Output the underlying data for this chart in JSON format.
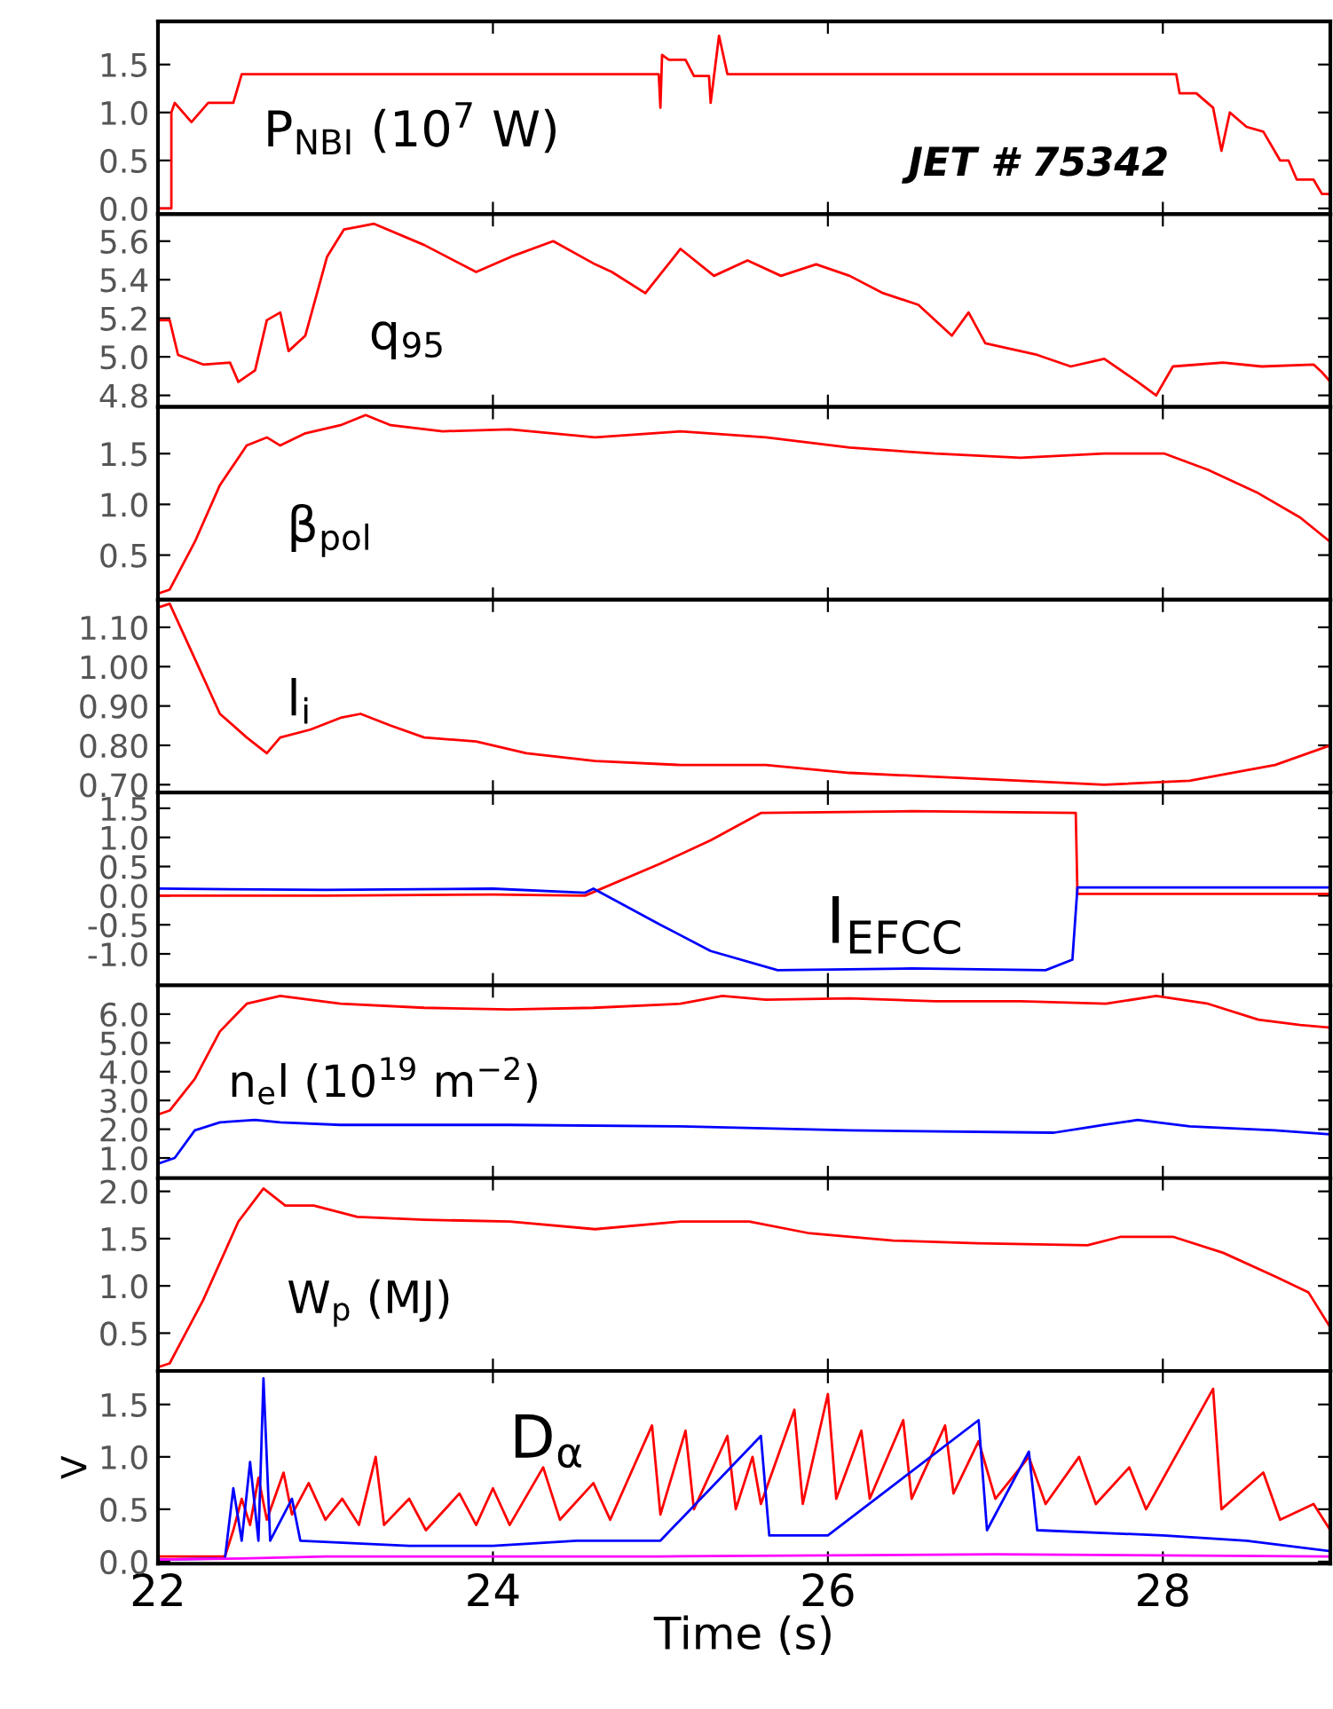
{
  "chart_data": [
    {
      "type": "line",
      "annotations": [
        "P$_{NBI}$ (10$^{7}$ W)",
        "JET # 75342"
      ],
      "xlim": [
        22,
        29
      ],
      "xticks": [
        22,
        24,
        26,
        28
      ],
      "ylim": [
        -0.06,
        1.95
      ],
      "yticks": [
        {
          "value": 0,
          "label": "0.0"
        },
        0.5,
        {
          "value": 1,
          "label": "1.0"
        },
        1.5
      ],
      "tick_labels": "y",
      "series": [
        {
          "color": "#ff0000",
          "x": [
            22.0,
            22.08,
            22.08,
            22.1,
            22.2,
            22.3,
            22.45,
            22.5,
            22.6,
            24.99,
            25.0,
            25.01,
            25.05,
            25.15,
            25.2,
            25.29,
            25.3,
            25.35,
            25.4,
            28.08,
            28.1,
            28.2,
            28.3,
            28.35,
            28.4,
            28.5,
            28.6,
            28.7,
            28.75,
            28.8,
            28.9,
            28.95,
            29.0
          ],
          "values": [
            0.0,
            0.0,
            1.0,
            1.1,
            0.9,
            1.1,
            1.1,
            1.4,
            1.4,
            1.4,
            1.05,
            1.6,
            1.55,
            1.55,
            1.38,
            1.38,
            1.1,
            1.8,
            1.4,
            1.4,
            1.2,
            1.2,
            1.05,
            0.6,
            1.0,
            0.85,
            0.8,
            0.5,
            0.5,
            0.3,
            0.3,
            0.15,
            0.15
          ]
        }
      ]
    },
    {
      "type": "line",
      "annotations": [
        "q$_{95}$"
      ],
      "xlim": [
        22,
        29
      ],
      "xticks": [
        22,
        24,
        26,
        28
      ],
      "ylim": [
        4.74,
        5.74
      ],
      "yticks": [
        4.8,
        {
          "value": 5,
          "label": "5.0"
        },
        5.2,
        5.4,
        5.6
      ],
      "tick_labels": "y",
      "series": [
        {
          "color": "#ff0000",
          "x": [
            22.0,
            22.07,
            22.12,
            22.27,
            22.43,
            22.48,
            22.58,
            22.65,
            22.73,
            22.78,
            22.88,
            23.01,
            23.11,
            23.29,
            23.59,
            23.9,
            24.11,
            24.36,
            24.61,
            24.71,
            24.91,
            25.12,
            25.32,
            25.52,
            25.72,
            25.93,
            26.13,
            26.33,
            26.54,
            26.74,
            26.84,
            26.94,
            27.25,
            27.45,
            27.65,
            27.85,
            27.96,
            28.06,
            28.36,
            28.59,
            28.9,
            28.95,
            29.0
          ],
          "values": [
            5.19,
            5.19,
            5.01,
            4.96,
            4.97,
            4.87,
            4.93,
            5.19,
            5.23,
            5.03,
            5.11,
            5.52,
            5.66,
            5.69,
            5.58,
            5.44,
            5.52,
            5.6,
            5.48,
            5.44,
            5.33,
            5.56,
            5.42,
            5.5,
            5.42,
            5.48,
            5.42,
            5.33,
            5.27,
            5.11,
            5.23,
            5.07,
            5.01,
            4.95,
            4.99,
            4.87,
            4.8,
            4.95,
            4.97,
            4.95,
            4.96,
            4.92,
            4.87
          ]
        }
      ]
    },
    {
      "type": "line",
      "annotations": [
        "β$_{pol}$"
      ],
      "xlim": [
        22,
        29
      ],
      "xticks": [
        22,
        24,
        26,
        28
      ],
      "ylim": [
        0.06,
        1.96
      ],
      "yticks": [
        0.5,
        {
          "value": 1,
          "label": "1.0"
        },
        1.5
      ],
      "tick_labels": "y",
      "series": [
        {
          "color": "#ff0000",
          "x": [
            22.0,
            22.07,
            22.22,
            22.37,
            22.53,
            22.65,
            22.73,
            22.88,
            23.09,
            23.24,
            23.39,
            23.7,
            24.1,
            24.61,
            25.12,
            25.63,
            26.13,
            26.64,
            27.15,
            27.65,
            28.01,
            28.27,
            28.57,
            28.82,
            29.0
          ],
          "values": [
            0.12,
            0.16,
            0.63,
            1.19,
            1.58,
            1.66,
            1.58,
            1.7,
            1.78,
            1.88,
            1.78,
            1.72,
            1.74,
            1.66,
            1.72,
            1.66,
            1.56,
            1.5,
            1.46,
            1.5,
            1.5,
            1.34,
            1.11,
            0.87,
            0.63
          ]
        }
      ]
    },
    {
      "type": "line",
      "annotations": [
        "l$_{i}$"
      ],
      "xlim": [
        22,
        29
      ],
      "xticks": [
        22,
        24,
        26,
        28
      ],
      "ylim": [
        0.68,
        1.17
      ],
      "yticks": [
        {
          "value": 0.7,
          "label": "0.70"
        },
        {
          "value": 0.8,
          "label": "0.80"
        },
        {
          "value": 0.9,
          "label": "0.90"
        },
        {
          "value": 1.0,
          "label": "1.00"
        },
        {
          "value": 1.1,
          "label": "1.10"
        }
      ],
      "tick_labels": "y",
      "series": [
        {
          "color": "#ff0000",
          "x": [
            22.0,
            22.07,
            22.22,
            22.37,
            22.53,
            22.65,
            22.73,
            22.91,
            23.09,
            23.21,
            23.39,
            23.59,
            23.9,
            24.2,
            24.61,
            25.12,
            25.63,
            26.13,
            26.64,
            27.15,
            27.65,
            28.16,
            28.41,
            28.67,
            29.0
          ],
          "values": [
            1.15,
            1.16,
            1.02,
            0.88,
            0.82,
            0.78,
            0.82,
            0.84,
            0.87,
            0.88,
            0.85,
            0.82,
            0.81,
            0.78,
            0.76,
            0.75,
            0.75,
            0.73,
            0.72,
            0.71,
            0.7,
            0.71,
            0.73,
            0.75,
            0.8
          ]
        }
      ]
    },
    {
      "type": "line",
      "annotations": [
        "I$_{EFCC}$"
      ],
      "xlim": [
        22,
        29
      ],
      "xticks": [
        22,
        24,
        26,
        28
      ],
      "ylim": [
        -1.54,
        1.77
      ],
      "yticks": [
        {
          "value": -1,
          "label": "-1.0"
        },
        {
          "value": -0.5,
          "label": "-0.5"
        },
        {
          "value": 0,
          "label": "0.0"
        },
        0.5,
        {
          "value": 1,
          "label": "1.0"
        },
        1.5
      ],
      "tick_labels": "y",
      "series": [
        {
          "color": "#ff0000",
          "x": [
            22.0,
            23.0,
            24.0,
            24.55,
            25.0,
            25.3,
            25.6,
            26.5,
            27.48,
            27.49,
            29.0
          ],
          "values": [
            0.0,
            0.0,
            0.02,
            0.0,
            0.55,
            0.95,
            1.42,
            1.45,
            1.42,
            0.03,
            0.03
          ]
        },
        {
          "color": "#0000ff",
          "x": [
            22.0,
            23.0,
            24.0,
            24.55,
            24.6,
            25.0,
            25.3,
            25.7,
            26.5,
            27.3,
            27.46,
            27.49,
            29.0
          ],
          "values": [
            0.12,
            0.1,
            0.12,
            0.05,
            0.12,
            -0.5,
            -0.95,
            -1.28,
            -1.25,
            -1.28,
            -1.1,
            0.14,
            0.14
          ]
        }
      ]
    },
    {
      "type": "line",
      "annotations": [
        "n$_{e}$l (10$^{19}$ m$^{−2}$)"
      ],
      "xlim": [
        22,
        29
      ],
      "xticks": [
        22,
        24,
        26,
        28
      ],
      "ylim": [
        0.3,
        7.0
      ],
      "yticks": [
        {
          "value": 1,
          "label": "1.0"
        },
        {
          "value": 2,
          "label": "2.0"
        },
        {
          "value": 3,
          "label": "3.0"
        },
        {
          "value": 4,
          "label": "4.0"
        },
        {
          "value": 5,
          "label": "5.0"
        },
        {
          "value": 6,
          "label": "6.0"
        }
      ],
      "tick_labels": "y",
      "series": [
        {
          "color": "#ff0000",
          "x": [
            22.0,
            22.07,
            22.22,
            22.37,
            22.53,
            22.73,
            23.09,
            23.59,
            24.1,
            24.6,
            25.12,
            25.37,
            25.63,
            26.13,
            26.64,
            27.15,
            27.66,
            27.96,
            28.27,
            28.57,
            28.82,
            29.0
          ],
          "values": [
            2.51,
            2.65,
            3.75,
            5.4,
            6.36,
            6.63,
            6.36,
            6.22,
            6.16,
            6.22,
            6.36,
            6.63,
            6.5,
            6.55,
            6.45,
            6.45,
            6.36,
            6.63,
            6.36,
            5.81,
            5.62,
            5.53
          ]
        },
        {
          "color": "#0000ff",
          "x": [
            22.0,
            22.1,
            22.22,
            22.37,
            22.58,
            22.73,
            23.09,
            24.1,
            25.12,
            26.13,
            27.35,
            27.65,
            27.85,
            28.16,
            28.67,
            29.0
          ],
          "values": [
            0.8,
            1.0,
            1.96,
            2.24,
            2.32,
            2.24,
            2.15,
            2.15,
            2.1,
            1.96,
            1.88,
            2.15,
            2.32,
            2.1,
            1.96,
            1.82
          ]
        }
      ]
    },
    {
      "type": "line",
      "annotations": [
        "W$_{p}$ (MJ)"
      ],
      "xlim": [
        22,
        29
      ],
      "xticks": [
        22,
        24,
        26,
        28
      ],
      "ylim": [
        0.1,
        2.14
      ],
      "yticks": [
        0.5,
        {
          "value": 1,
          "label": "1.0"
        },
        1.5,
        {
          "value": 2,
          "label": "2.0"
        }
      ],
      "tick_labels": "y",
      "series": [
        {
          "color": "#ff0000",
          "x": [
            22.0,
            22.07,
            22.27,
            22.48,
            22.63,
            22.76,
            22.93,
            23.19,
            23.59,
            24.1,
            24.61,
            25.12,
            25.37,
            25.53,
            25.88,
            26.39,
            26.89,
            27.55,
            27.75,
            28.06,
            28.36,
            28.67,
            28.87,
            29.0
          ],
          "values": [
            0.14,
            0.18,
            0.85,
            1.68,
            2.03,
            1.85,
            1.85,
            1.73,
            1.7,
            1.68,
            1.6,
            1.68,
            1.68,
            1.68,
            1.56,
            1.48,
            1.45,
            1.43,
            1.52,
            1.52,
            1.35,
            1.1,
            0.93,
            0.56
          ]
        }
      ]
    },
    {
      "type": "line",
      "annotations": [
        "D$_{α}$"
      ],
      "xlabel": "Time (s)",
      "ylabel": "V",
      "xlim": [
        22,
        29
      ],
      "xticks": [
        22,
        24,
        26,
        28
      ],
      "ylim": [
        -0.02,
        1.82
      ],
      "yticks": [
        {
          "value": 0,
          "label": "0.0"
        },
        0.5,
        {
          "value": 1,
          "label": "1.0"
        },
        1.5
      ],
      "series": [
        {
          "color": "#ff0000",
          "x": [
            22.0,
            22.4,
            22.45,
            22.5,
            22.55,
            22.6,
            22.65,
            22.75,
            22.8,
            22.9,
            23.0,
            23.1,
            23.2,
            23.3,
            23.35,
            23.5,
            23.6,
            23.8,
            23.9,
            24.0,
            24.1,
            24.3,
            24.4,
            24.6,
            24.7,
            24.95,
            25.0,
            25.15,
            25.2,
            25.4,
            25.45,
            25.55,
            25.6,
            25.8,
            25.85,
            26.0,
            26.05,
            26.2,
            26.25,
            26.45,
            26.5,
            26.7,
            26.75,
            26.9,
            27.0,
            27.2,
            27.3,
            27.5,
            27.6,
            27.8,
            27.9,
            28.3,
            28.35,
            28.6,
            28.7,
            28.9,
            29.0
          ],
          "values": [
            0.05,
            0.05,
            0.3,
            0.6,
            0.35,
            0.8,
            0.4,
            0.85,
            0.45,
            0.75,
            0.4,
            0.6,
            0.35,
            1.0,
            0.35,
            0.6,
            0.3,
            0.65,
            0.35,
            0.7,
            0.35,
            0.9,
            0.4,
            0.75,
            0.4,
            1.3,
            0.45,
            1.25,
            0.5,
            1.2,
            0.5,
            1.0,
            0.55,
            1.45,
            0.55,
            1.6,
            0.6,
            1.25,
            0.6,
            1.35,
            0.6,
            1.3,
            0.65,
            1.15,
            0.6,
            1.0,
            0.55,
            1.0,
            0.55,
            0.9,
            0.5,
            1.65,
            0.5,
            0.85,
            0.4,
            0.55,
            0.3
          ]
        },
        {
          "color": "#0000ff",
          "x": [
            22.0,
            22.4,
            22.45,
            22.5,
            22.55,
            22.6,
            22.63,
            22.67,
            22.8,
            22.85,
            23.5,
            24.0,
            24.5,
            25.0,
            25.6,
            25.65,
            26.0,
            26.9,
            26.95,
            27.2,
            27.25,
            28.0,
            28.5,
            29.0
          ],
          "values": [
            0.02,
            0.03,
            0.7,
            0.2,
            0.95,
            0.2,
            1.75,
            0.2,
            0.6,
            0.2,
            0.15,
            0.15,
            0.2,
            0.2,
            1.2,
            0.25,
            0.25,
            1.35,
            0.3,
            1.05,
            0.3,
            0.25,
            0.2,
            0.1
          ]
        },
        {
          "color": "#ff00ff",
          "x": [
            22.0,
            22.5,
            23.0,
            25.0,
            27.0,
            29.0
          ],
          "values": [
            0.02,
            0.03,
            0.05,
            0.05,
            0.07,
            0.05
          ]
        }
      ]
    }
  ]
}
